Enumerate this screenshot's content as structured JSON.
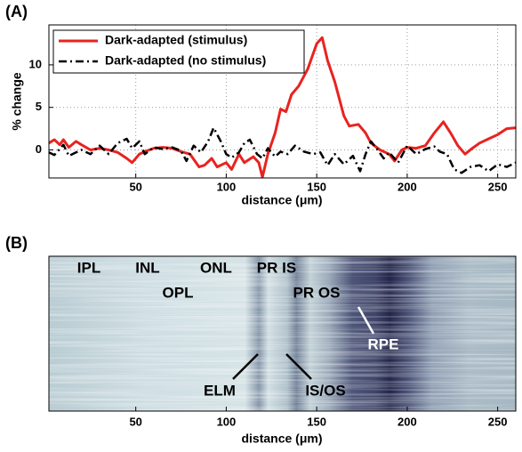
{
  "chart_data": [
    {
      "type": "line",
      "panel_label": "(A)",
      "xlabel": "distance (μm)",
      "ylabel": "% change",
      "xlim": [
        2,
        260
      ],
      "xticks": [
        50,
        100,
        150,
        200,
        250
      ],
      "ylim": [
        -3.3,
        14.7
      ],
      "yticks": [
        0,
        5,
        10
      ],
      "grid": true,
      "legend": "upper left",
      "series": [
        {
          "name": "Dark-adapted (stimulus)",
          "color": "#e8231f",
          "style": "solid",
          "x": [
            2,
            5,
            8,
            10,
            13,
            17,
            20,
            25,
            30,
            35,
            40,
            45,
            48,
            52,
            55,
            60,
            65,
            70,
            75,
            80,
            85,
            88,
            92,
            95,
            100,
            103,
            107,
            110,
            115,
            118,
            120,
            123,
            127,
            130,
            133,
            136,
            140,
            145,
            150,
            153,
            156,
            160,
            165,
            168,
            173,
            177,
            180,
            185,
            190,
            193,
            197,
            200,
            205,
            210,
            215,
            220,
            224,
            228,
            232,
            236,
            240,
            245,
            250,
            255,
            260
          ],
          "values": [
            0.8,
            1.2,
            0.6,
            1.2,
            0.3,
            1.0,
            0.6,
            0,
            0.2,
            0,
            -0.3,
            -1.0,
            -1.5,
            -0.5,
            -0.2,
            0.2,
            0.3,
            0.2,
            -0.2,
            -0.5,
            -2.0,
            -1.8,
            -1.0,
            -2.0,
            -1.5,
            -2.3,
            -0.5,
            -1.5,
            -0.8,
            -1.5,
            -3.2,
            -0.5,
            2.0,
            4.8,
            4.5,
            6.5,
            7.5,
            9.5,
            12.5,
            13.2,
            10.5,
            8.0,
            4.0,
            2.8,
            3.0,
            2.0,
            0.8,
            0,
            -0.5,
            -1.3,
            0.0,
            0.3,
            0.2,
            0.5,
            2.0,
            3.3,
            2.0,
            0.5,
            -0.5,
            0.2,
            0.8,
            1.3,
            1.8,
            2.5,
            2.6
          ]
        },
        {
          "name": "Dark-adapted (no stimulus)",
          "color": "#000000",
          "style": "dashdot",
          "x": [
            2,
            5,
            10,
            13,
            17,
            20,
            25,
            30,
            35,
            40,
            45,
            48,
            52,
            55,
            60,
            65,
            70,
            75,
            78,
            82,
            86,
            90,
            93,
            97,
            100,
            103,
            107,
            110,
            113,
            117,
            120,
            123,
            127,
            130,
            134,
            138,
            143,
            148,
            152,
            156,
            160,
            165,
            170,
            174,
            177,
            180,
            183,
            187,
            190,
            195,
            200,
            205,
            210,
            215,
            218,
            222,
            226,
            230,
            235,
            240,
            245,
            250,
            255,
            260
          ],
          "values": [
            -0.3,
            -0.6,
            0.6,
            -0.7,
            -0.3,
            0,
            -0.5,
            0.5,
            -0.5,
            0.8,
            1.3,
            0.2,
            1.0,
            -0.5,
            0.3,
            0.1,
            0.3,
            -0.1,
            -1.3,
            0.5,
            -0.3,
            1.0,
            2.6,
            1.0,
            -0.5,
            -0.9,
            -0.3,
            0.8,
            1.2,
            -0.5,
            -1.0,
            0.2,
            -0.8,
            -0.2,
            -0.5,
            0.5,
            -0.2,
            -0.5,
            -0.3,
            -1.8,
            -0.5,
            -1.7,
            -0.7,
            -2.5,
            -0.5,
            1.0,
            0.2,
            -1.0,
            -0.3,
            -1.5,
            0.5,
            -0.5,
            0.1,
            0.4,
            -0.2,
            -0.5,
            -2.3,
            -2.7,
            -2.0,
            -1.8,
            -2.5,
            -1.7,
            -2.0,
            -1.5
          ]
        }
      ]
    },
    {
      "type": "image",
      "panel_label": "(B)",
      "xlabel": "distance (μm)",
      "xlim": [
        2,
        260
      ],
      "xticks": [
        50,
        100,
        150,
        200,
        250
      ],
      "annotations": [
        "IPL",
        "INL",
        "ONL",
        "OPL",
        "PR IS",
        "PR OS",
        "RPE",
        "ELM",
        "IS/OS"
      ]
    }
  ]
}
